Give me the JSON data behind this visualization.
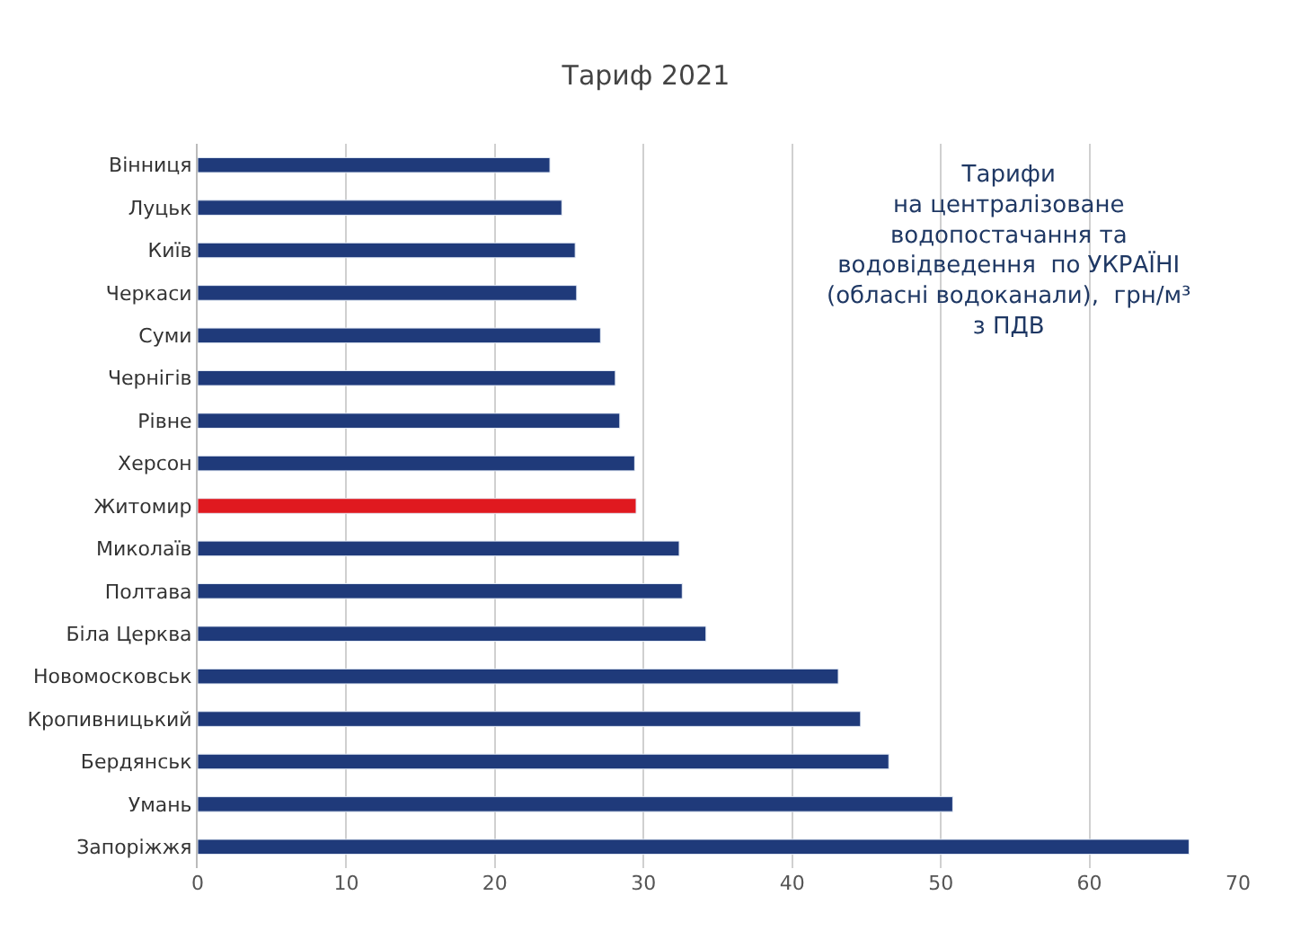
{
  "chart_data": {
    "type": "bar",
    "orientation": "horizontal",
    "title": "Тариф 2021",
    "categories": [
      "Вінниця",
      "Луцьк",
      "Київ",
      "Черкаси",
      "Суми",
      "Чернігів",
      "Рівне",
      "Херсон",
      "Житомир",
      "Миколаїв",
      "Полтава",
      "Біла Церква",
      "Новомосковськ",
      "Кропивницький",
      "Бердянськ",
      "Умань",
      "Запоріжжя"
    ],
    "values": [
      23.7,
      24.5,
      25.4,
      25.5,
      27.1,
      28.1,
      28.4,
      29.4,
      29.5,
      32.4,
      32.6,
      34.2,
      43.1,
      44.6,
      46.5,
      50.8,
      66.7
    ],
    "colors": [
      "#1f3a7a",
      "#1f3a7a",
      "#1f3a7a",
      "#1f3a7a",
      "#1f3a7a",
      "#1f3a7a",
      "#1f3a7a",
      "#1f3a7a",
      "#e0191f",
      "#1f3a7a",
      "#1f3a7a",
      "#1f3a7a",
      "#1f3a7a",
      "#1f3a7a",
      "#1f3a7a",
      "#1f3a7a",
      "#1f3a7a"
    ],
    "xlim": [
      0,
      70
    ],
    "xticks": [
      0,
      10,
      20,
      30,
      40,
      50,
      60,
      70
    ],
    "grid": "x",
    "annotations": [
      "Тарифи\nна централізоване\nводопостачання та\nводовідведення  по УКРАЇНІ\n(обласні водоканали),  грн/м³\nз ПДВ"
    ]
  }
}
